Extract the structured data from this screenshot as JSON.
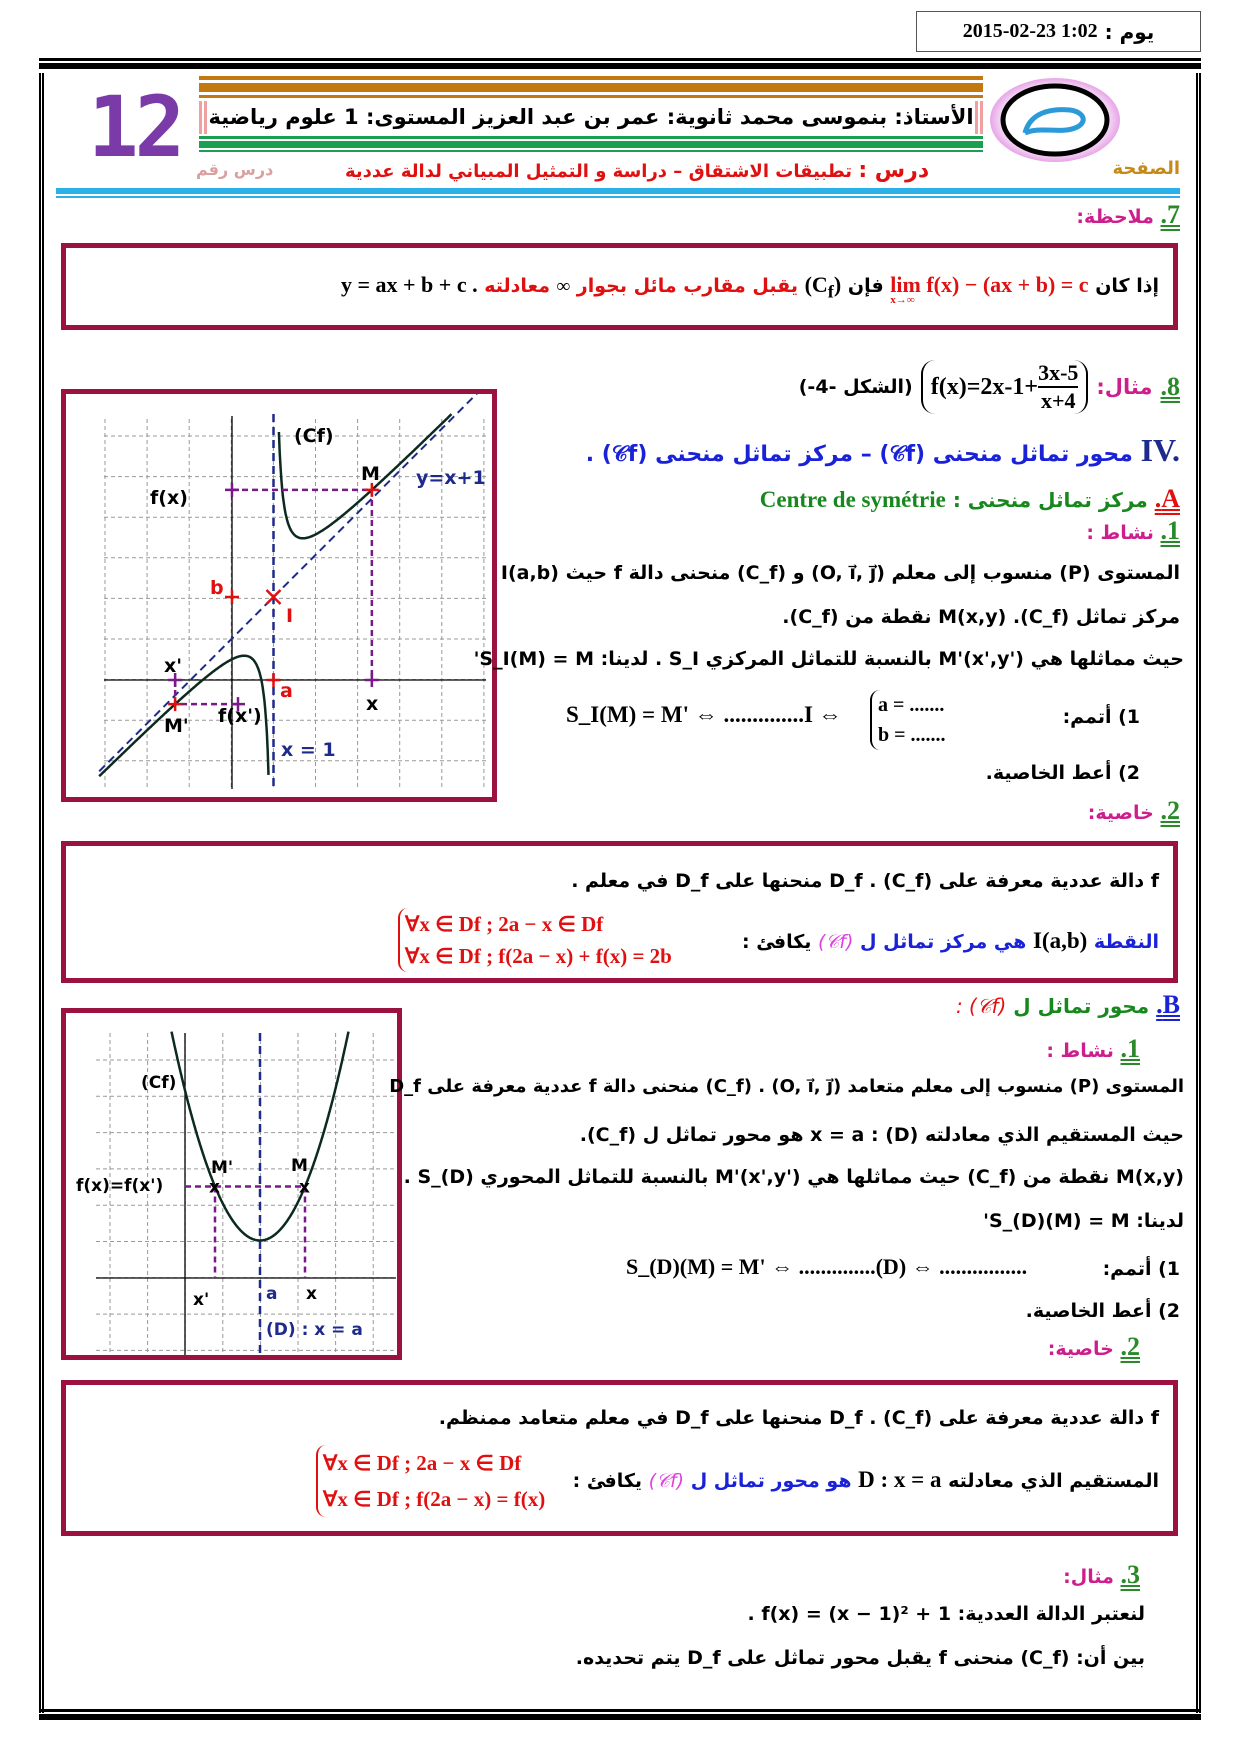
{
  "header": {
    "date_label": "يوم :",
    "date_value": "2015-02-23 1:02",
    "lesson_number": "12",
    "lesson_number_label": "درس رقم",
    "page_label": "الصفحة",
    "teacher_line": "الأستاذ: بنموسى محمد  ثانوية: عمر بن عبد العزيز المستوى: 1 علوم رياضية",
    "lesson_prefix": "درس :",
    "lesson_title": "تطبيقات الاشتقاق – دراسة و التمثيل المبياني لدالة عددية"
  },
  "note": {
    "number": "7.",
    "title": "ملاحظة:",
    "if": "إذا كان",
    "limit": "lim f(x) − (ax + b) = c",
    "limit_sub": "x→∞",
    "then": "فإن",
    "cf": "(C",
    "cf_sub": "f",
    "accepts": "يقبل  مقارب مائل بجوار",
    "inf": "∞",
    "eq_word": "معادلته",
    "equation": "y = ax + b + c ."
  },
  "example8": {
    "number": "8.",
    "title": "مثال:",
    "function": "f(x)=2x-1+",
    "numerator": "3x-5",
    "denominator": "x+4",
    "figure": "(الشكل -4-)"
  },
  "section_iv": {
    "number": "IV.",
    "title": "محور تماثل منحنى (𝒞f) – مركز تماثل منحنى (𝒞f) ."
  },
  "section_a": {
    "number": "A.",
    "title": "مركز تماثل منحنى :",
    "french": "Centre de symétrie"
  },
  "activity_a": {
    "number": "1.",
    "title": "نشاط :",
    "lines": [
      "المستوى (P) منسوب إلى معلم (O, i⃗, j⃗) و (C_f) منحنى دالة f حيث I(a,b)",
      "مركز تماثل (C_f). M(x,y) نقطة من (C_f).",
      "حيث مماثلها هي M'(x',y') بالنسبة للتماثل المركزي S_I . لدينا: S_I(M) = M'"
    ],
    "q1_label": "1) أتمم:",
    "q1_math": "S_I(M) = M' ⇔ ..............I ⇔",
    "q1_a": "a = .......",
    "q1_b": "b = .......",
    "q2": "2) أعط الخاصية."
  },
  "property_a": {
    "number": "2.",
    "title": "خاصية:",
    "line1": "f دالة عددية معرفة على D_f . (C_f) منحنها على D_f في معلم .",
    "point": "النقطة",
    "point_math": "I(a,b)",
    "is_center": "هي مركز تماثل ل",
    "cf": "(𝒞f)",
    "equiv": "يكافئ :",
    "cond1": "∀x ∈ Df  ;  2a − x ∈ Df",
    "cond2": "∀x ∈ Df  ;  f(2a − x) + f(x) = 2b"
  },
  "graph1": {
    "cf": "(Cf)",
    "m": "M",
    "fx": "f(x)",
    "asym": "y=x+1",
    "b": "b",
    "i": "I",
    "x_prime": "x'",
    "a": "a",
    "x": "x",
    "m_prime": "M'",
    "fx_prime": "f(x')",
    "vert": "x = 1"
  },
  "section_b": {
    "number": "B.",
    "title": "محور تماثل ل",
    "cf": "(𝒞f) :"
  },
  "activity_b": {
    "number": "1.",
    "title": "نشاط :",
    "lines": [
      "المستوى (P) منسوب إلى معلم متعامد (O, i⃗, j⃗) . (C_f) منحنى دالة f عددية معرفة على D_f",
      "حيث المستقيم الذي معادلته x = a : (D) هو محور تماثل ل (C_f).",
      "M(x,y) نقطة من (C_f) حيث مماثلها هي M'(x',y') بالنسبة للتماثل المحوري S_(D) .",
      "لدينا: S_(D)(M) = M'"
    ],
    "q1_label": "1) أتمم:",
    "q1_math": "S_(D)(M) = M' ⇔ ..............(D) ⇔ ................",
    "q2": "2) أعط الخاصية."
  },
  "property_b": {
    "number": "2.",
    "title": "خاصية:",
    "line1": "f دالة عددية معرفة على D_f . (C_f) منحنها على D_f في معلم متعامد ممنظم.",
    "line_start": "المستقيم الذي معادلته",
    "line_math": "D : x = a",
    "is_axis": "هو محور تماثل ل",
    "cf": "(𝒞f)",
    "equiv": "يكافئ :",
    "cond1": "∀x ∈ Df  ;  2a − x ∈ Df",
    "cond2": "∀x ∈ Df  ;  f(2a − x) = f(x)"
  },
  "graph2": {
    "cf": "(Cf)",
    "fxeq": "f(x)=f(x')",
    "m_prime": "M'",
    "m": "M",
    "x_prime": "x'",
    "a": "a",
    "x": "x",
    "axis": "(D) :  x = a"
  },
  "example3": {
    "number": "3.",
    "title": "مثال:",
    "line1": "لنعتبر الدالة العددية: f(x) = (x − 1)² + 1 .",
    "line2": "بين أن: (C_f) منحنى f يقبل محور تماثل على D_f يتم تحديده."
  },
  "colors": {
    "frame": "#9b1240",
    "title_red": "#e01010",
    "accent_pink": "#cc1e8c",
    "accent_blue": "#1a22d8",
    "accent_green": "#18881e"
  }
}
